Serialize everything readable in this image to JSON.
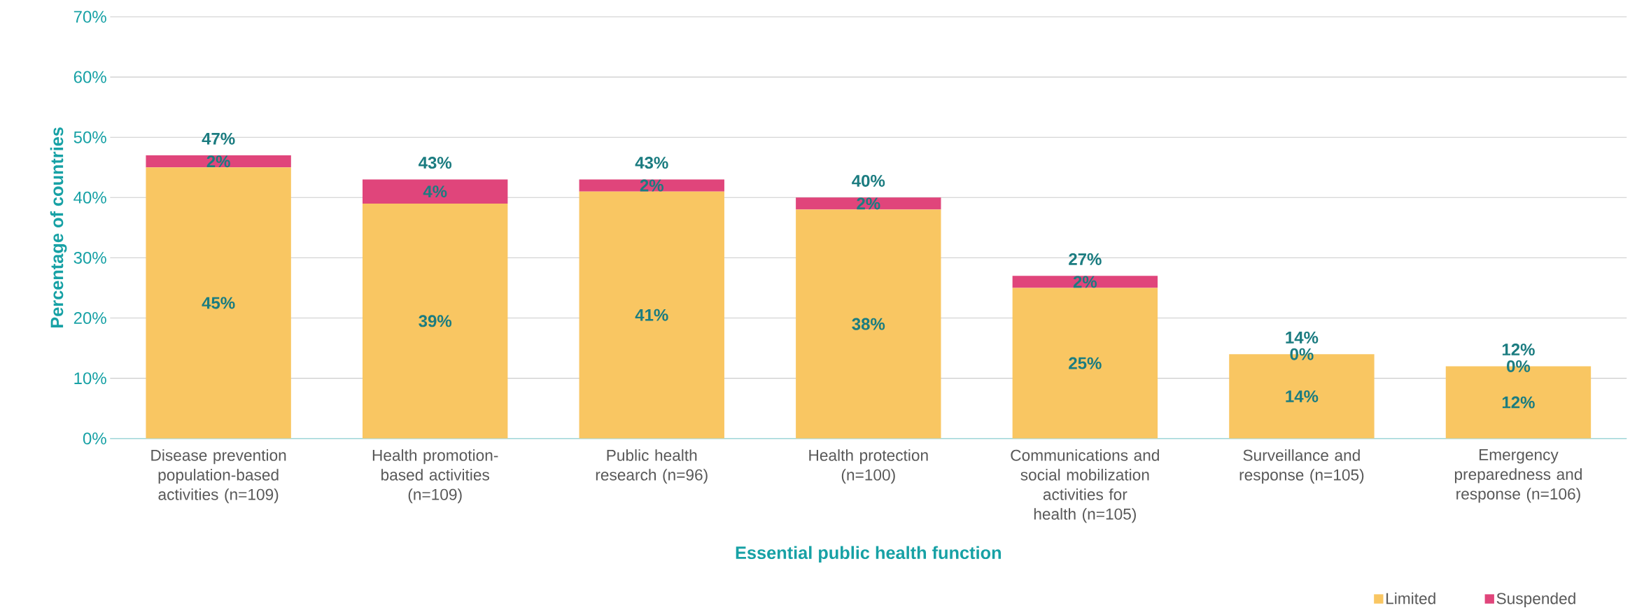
{
  "chart_data": {
    "type": "bar",
    "xlabel": "Essential public health function",
    "ylabel": "Percentage of countries",
    "categories": [
      "Disease prevention population-based activities (n=109)",
      "Health promotion-based activities (n=109)",
      "Public health research (n=96)",
      "Health protection (n=100)",
      "Communications and social mobilization activities for health (n=105)",
      "Surveillance and response (n=105)",
      "Emergency preparedness and response (n=106)"
    ],
    "series": [
      {
        "name": "Limited",
        "color": "#f9c662",
        "values": [
          45,
          39,
          41,
          38,
          25,
          14,
          12
        ],
        "value_labels": [
          "45%",
          "39%",
          "41%",
          "38%",
          "25%",
          "14%",
          "12%"
        ]
      },
      {
        "name": "Suspended",
        "color": "#e0457b",
        "values": [
          2,
          4,
          2,
          2,
          2,
          0,
          0
        ],
        "value_labels": [
          "2%",
          "4%",
          "2%",
          "2%",
          "2%",
          "0%",
          "0%"
        ]
      }
    ],
    "totals": [
      "47%",
      "43%",
      "43%",
      "40%",
      "27%",
      "14%",
      "12%"
    ],
    "stacked": true,
    "ylim": [
      0,
      70
    ],
    "yticks": [
      {
        "value": 0,
        "label": "0%"
      },
      {
        "value": 10,
        "label": "10%"
      },
      {
        "value": 20,
        "label": "20%"
      },
      {
        "value": 30,
        "label": "30%"
      },
      {
        "value": 40,
        "label": "40%"
      },
      {
        "value": 50,
        "label": "50%"
      },
      {
        "value": 60,
        "label": "60%"
      },
      {
        "value": 70,
        "label": "70%"
      }
    ],
    "grid": "y",
    "legend": "bottom right"
  }
}
